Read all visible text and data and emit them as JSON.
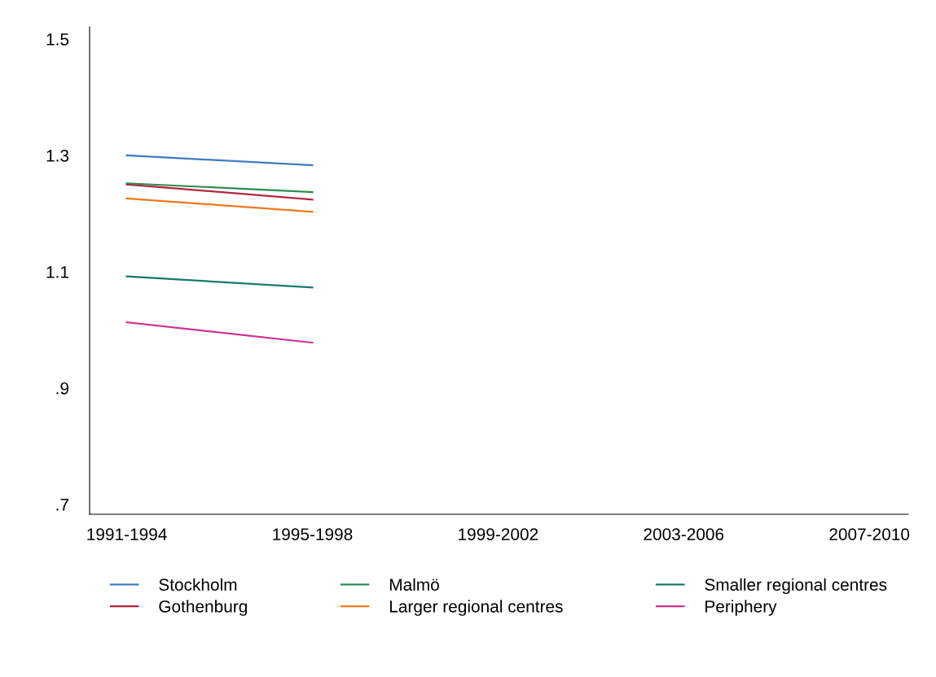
{
  "chart_data": {
    "type": "line",
    "categories": [
      "1991-1994",
      "1995-1998",
      "1999-2002",
      "2003-2006",
      "2007-2010"
    ],
    "series": [
      {
        "name": "Stockholm",
        "color": "#3f7cc0",
        "values": [
          1.3,
          1.283,
          null,
          null,
          null
        ]
      },
      {
        "name": "Gothenburg",
        "color": "#b3283f",
        "values": [
          1.25,
          1.224,
          null,
          null,
          null
        ]
      },
      {
        "name": "Malmö",
        "color": "#2f8b4f",
        "values": [
          1.252,
          1.237,
          null,
          null,
          null
        ]
      },
      {
        "name": "Larger regional centres",
        "color": "#ef7a1f",
        "values": [
          1.226,
          1.203,
          null,
          null,
          null
        ]
      },
      {
        "name": "Smaller regional centres",
        "color": "#187a6c",
        "values": [
          1.092,
          1.073,
          null,
          null,
          null
        ]
      },
      {
        "name": "Periphery",
        "color": "#cf338f",
        "values": [
          1.013,
          0.978,
          null,
          null,
          null
        ]
      }
    ],
    "ylim": [
      0.683,
      1.521
    ],
    "yticks": [
      {
        "value": 0.7,
        "label": ".7"
      },
      {
        "value": 0.9,
        "label": ".9"
      },
      1.1,
      1.3,
      1.5
    ],
    "grid": false,
    "legend": "bottom",
    "marker": "none",
    "line_style": "solid"
  }
}
